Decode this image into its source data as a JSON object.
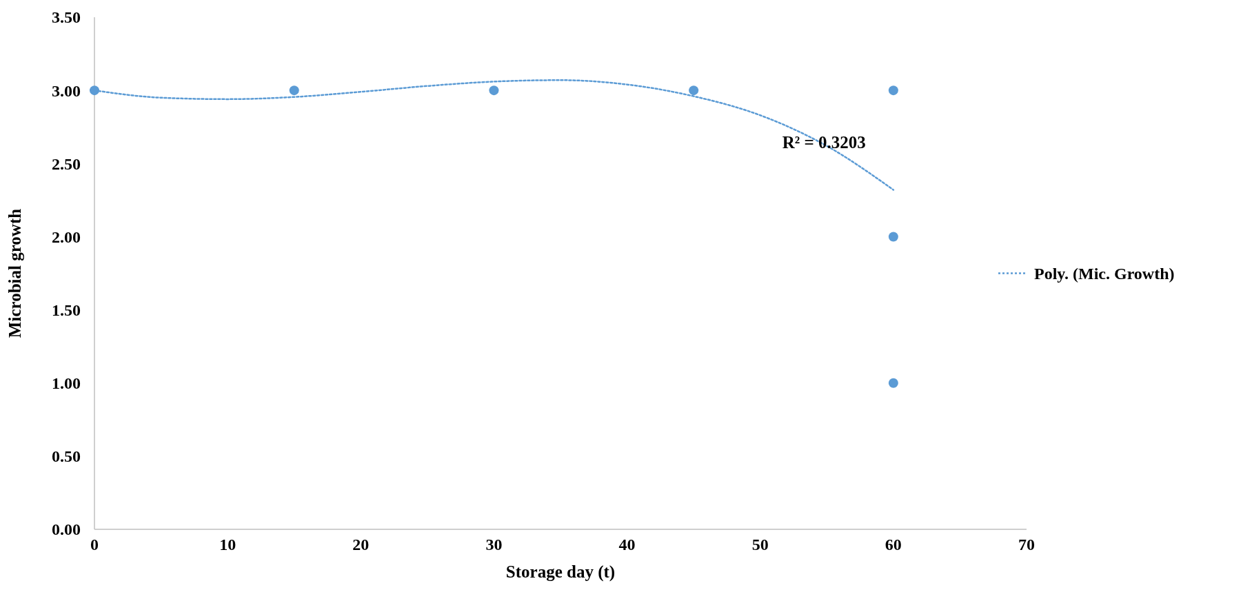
{
  "chart_data": {
    "type": "scatter",
    "xlabel": "Storage day (t)",
    "ylabel": "Microbial growth",
    "xlim": [
      0,
      70
    ],
    "xticks": [
      0,
      10,
      20,
      30,
      40,
      50,
      60,
      70
    ],
    "ylim": [
      0,
      3.5
    ],
    "yticks": [
      {
        "value": 0,
        "label": "0.00"
      },
      {
        "value": 0.5,
        "label": "0.50"
      },
      {
        "value": 1,
        "label": "1.00"
      },
      {
        "value": 1.5,
        "label": "1.50"
      },
      {
        "value": 2,
        "label": "2.00"
      },
      {
        "value": 2.5,
        "label": "2.50"
      },
      {
        "value": 3,
        "label": "3.00"
      },
      {
        "value": 3.5,
        "label": "3.50"
      }
    ],
    "grid": false,
    "legend": "right",
    "series": [
      {
        "color": "#5b9bd5",
        "marker": "circle",
        "x": [
          0,
          15,
          30,
          45,
          60,
          60,
          60
        ],
        "values": [
          3,
          3,
          3,
          3,
          3,
          2,
          1
        ]
      },
      {
        "type": "line",
        "name": "Poly. (Mic. Growth)",
        "color": "#5b9bd5",
        "line_style": "dotted",
        "marker": "none",
        "x": [
          0,
          5,
          10,
          15,
          20,
          25,
          30,
          35,
          40,
          45,
          50,
          55,
          60
        ],
        "values": [
          3.0,
          2.95,
          2.94,
          2.955,
          2.99,
          3.03,
          3.06,
          3.07,
          3.04,
          2.96,
          2.83,
          2.62,
          2.32
        ]
      }
    ],
    "annotations": [
      "R² = 0.3203"
    ]
  }
}
